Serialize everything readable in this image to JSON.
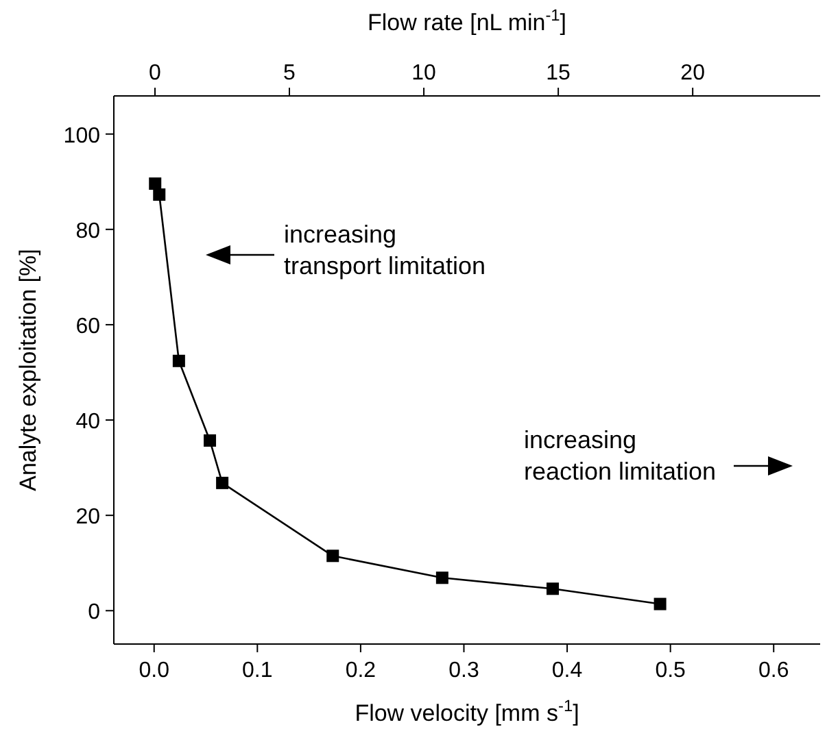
{
  "chart_data": {
    "type": "line",
    "xlabel": "Flow velocity [mm s$^{-1}$]",
    "ylabel": "Analyte exploitation [%]",
    "x2label": "Flow rate [nL min$^{-1}$]",
    "x": [
      0.001,
      0.005,
      0.024,
      0.054,
      0.066,
      0.173,
      0.279,
      0.386,
      0.49
    ],
    "series": [
      {
        "color": "#000000",
        "values": [
          89.6,
          87.3,
          52.4,
          35.7,
          26.8,
          11.5,
          6.9,
          4.6,
          1.4
        ]
      }
    ],
    "xlim": [
      -0.039,
      0.645
    ],
    "xticks": [
      {
        "value": 0,
        "label": "0.0"
      },
      0.1,
      0.2,
      0.3,
      0.4,
      0.5,
      0.6
    ],
    "x2lim": [
      -1.53,
      24.74
    ],
    "x2ticks": [
      0,
      5,
      10,
      15,
      20
    ],
    "ylim": [
      -7,
      108
    ],
    "yticks": [
      0,
      20,
      40,
      60,
      80,
      100
    ],
    "marker": "square",
    "line_style": "solid",
    "grid": false,
    "annotations": [
      "increasing\ntransport limitation",
      "increasing\nreaction limitation"
    ]
  }
}
